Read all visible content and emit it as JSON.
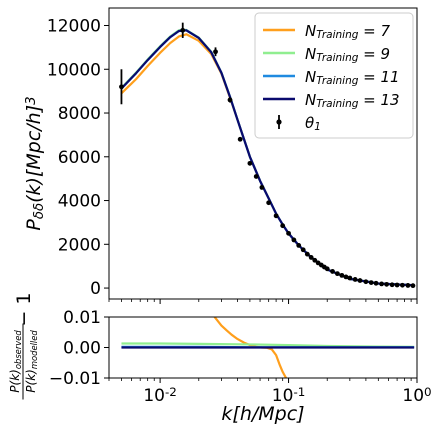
{
  "chart_data": [
    {
      "type": "line",
      "panel": "top",
      "ylabel": "$P_{\\delta\\delta}(k)[Mpc/h]^3$",
      "xscale": "log",
      "xlim": [
        0.004,
        1.0
      ],
      "ylim": [
        -500,
        12800
      ],
      "grid": false,
      "legend_position": "top-right",
      "yticks": [
        0,
        2000,
        4000,
        6000,
        8000,
        10000,
        12000
      ],
      "ytick_labels": [
        "0",
        "2000",
        "4000",
        "6000",
        "8000",
        "10000",
        "12000"
      ],
      "series": [
        {
          "name": "$N_{Training} = 7$",
          "color": "#ff9f1c",
          "x": [
            0.005,
            0.0065,
            0.008,
            0.01,
            0.012,
            0.014,
            0.016,
            0.02,
            0.025,
            0.03,
            0.035,
            0.04,
            0.045,
            0.05,
            0.06,
            0.07,
            0.08,
            0.09,
            0.1,
            0.12,
            0.15,
            0.2,
            0.3,
            0.5,
            0.7,
            0.95
          ],
          "y": [
            8900,
            9550,
            10150,
            10750,
            11200,
            11500,
            11600,
            11300,
            10700,
            9800,
            8700,
            7700,
            6800,
            6000,
            4900,
            4100,
            3400,
            2900,
            2500,
            1950,
            1400,
            850,
            420,
            210,
            165,
            130
          ]
        },
        {
          "name": "$N_{Training} = 9$",
          "color": "#90ee90",
          "x": [
            0.005,
            0.0065,
            0.008,
            0.01,
            0.012,
            0.014,
            0.016,
            0.02,
            0.025,
            0.03,
            0.035,
            0.04,
            0.045,
            0.05,
            0.06,
            0.07,
            0.08,
            0.09,
            0.1,
            0.12,
            0.15,
            0.2,
            0.3,
            0.5,
            0.7,
            0.95
          ],
          "y": [
            9150,
            9850,
            10450,
            11050,
            11500,
            11780,
            11800,
            11450,
            10800,
            9850,
            8750,
            7700,
            6800,
            6000,
            4900,
            4100,
            3400,
            2900,
            2500,
            1950,
            1400,
            850,
            420,
            210,
            165,
            130
          ]
        },
        {
          "name": "$N_{Training} = 11$",
          "color": "#1f8ae0",
          "x": [
            0.005,
            0.0065,
            0.008,
            0.01,
            0.012,
            0.014,
            0.016,
            0.02,
            0.025,
            0.03,
            0.035,
            0.04,
            0.045,
            0.05,
            0.06,
            0.07,
            0.08,
            0.09,
            0.1,
            0.12,
            0.15,
            0.2,
            0.3,
            0.5,
            0.7,
            0.95
          ],
          "y": [
            9120,
            9820,
            10420,
            11020,
            11470,
            11750,
            11780,
            11430,
            10780,
            9840,
            8740,
            7700,
            6800,
            6000,
            4900,
            4100,
            3400,
            2900,
            2500,
            1950,
            1400,
            850,
            420,
            210,
            165,
            130
          ]
        },
        {
          "name": "$N_{Training} = 13$",
          "color": "#0a0a6e",
          "x": [
            0.005,
            0.0065,
            0.008,
            0.01,
            0.012,
            0.014,
            0.016,
            0.02,
            0.025,
            0.03,
            0.035,
            0.04,
            0.045,
            0.05,
            0.06,
            0.07,
            0.08,
            0.09,
            0.1,
            0.12,
            0.15,
            0.2,
            0.3,
            0.5,
            0.7,
            0.95
          ],
          "y": [
            9120,
            9820,
            10420,
            11020,
            11470,
            11750,
            11780,
            11430,
            10780,
            9840,
            8740,
            7700,
            6800,
            6000,
            4900,
            4100,
            3400,
            2900,
            2500,
            1950,
            1400,
            850,
            420,
            210,
            165,
            130
          ]
        }
      ],
      "errorbar_series": {
        "name": "$\\theta_1$",
        "color": "#000000",
        "x": [
          0.005,
          0.015,
          0.027,
          0.035,
          0.042,
          0.05,
          0.056,
          0.062,
          0.07,
          0.08,
          0.09,
          0.1,
          0.11,
          0.12,
          0.13,
          0.14,
          0.15,
          0.16,
          0.17,
          0.18,
          0.19,
          0.2,
          0.22,
          0.24,
          0.26,
          0.28,
          0.3,
          0.33,
          0.36,
          0.4,
          0.44,
          0.48,
          0.53,
          0.58,
          0.64,
          0.7,
          0.77,
          0.85,
          0.93
        ],
        "y": [
          9200,
          11780,
          10800,
          8600,
          6800,
          5700,
          5100,
          4600,
          3900,
          3300,
          2850,
          2500,
          2200,
          1950,
          1750,
          1550,
          1400,
          1270,
          1150,
          1050,
          960,
          880,
          760,
          660,
          580,
          510,
          460,
          395,
          345,
          290,
          250,
          220,
          190,
          170,
          150,
          140,
          130,
          120,
          110
        ],
        "yerr": [
          800,
          350,
          200,
          120,
          90,
          70,
          60,
          50,
          40,
          35,
          30,
          25,
          20,
          18,
          16,
          14,
          12,
          11,
          10,
          9,
          8,
          8,
          7,
          6,
          5,
          5,
          4,
          4,
          3,
          3,
          3,
          2,
          2,
          2,
          2,
          2,
          2,
          2,
          2
        ]
      }
    },
    {
      "type": "line",
      "panel": "bottom",
      "xlabel": "$k[h/Mpc]$",
      "ylabel": "$\\frac{P(k)_{observed}}{P(k)_{modelled}} - 1$",
      "xscale": "log",
      "xlim": [
        0.004,
        1.0
      ],
      "ylim": [
        -0.01,
        0.01
      ],
      "grid": false,
      "yticks": [
        -0.01,
        0.0,
        0.01
      ],
      "ytick_labels": [
        "−0.01",
        "0.00",
        "0.01"
      ],
      "xticks": [
        0.01,
        0.1,
        1.0
      ],
      "xtick_labels": [
        "$10^{-2}$",
        "$10^{-1}$",
        "$10^{0}$"
      ],
      "series": [
        {
          "name": "$N_{Training} = 7$",
          "color": "#ff9f1c",
          "x": [
            0.026,
            0.028,
            0.03,
            0.033,
            0.036,
            0.04,
            0.045,
            0.05,
            0.056,
            0.062,
            0.068,
            0.074,
            0.08,
            0.085,
            0.09,
            0.1
          ],
          "y": [
            0.0105,
            0.0088,
            0.0072,
            0.0056,
            0.0042,
            0.0028,
            0.0016,
            0.0008,
            0.0002,
            0.0,
            -0.0001,
            -0.0006,
            -0.0025,
            -0.0055,
            -0.008,
            -0.0115
          ]
        },
        {
          "name": "$N_{Training} = 9$",
          "color": "#90ee90",
          "x": [
            0.005,
            0.01,
            0.02,
            0.05,
            0.1,
            0.2,
            0.5,
            0.95
          ],
          "y": [
            0.0013,
            0.0013,
            0.0012,
            0.001,
            0.0008,
            0.0005,
            0.0003,
            0.0002
          ]
        },
        {
          "name": "$N_{Training} = 11$",
          "color": "#1f8ae0",
          "x": [
            0.005,
            0.01,
            0.02,
            0.05,
            0.1,
            0.2,
            0.5,
            0.95
          ],
          "y": [
            0.0002,
            0.0002,
            0.0002,
            0.0001,
            0.0001,
            0.0001,
            0.0001,
            0.0001
          ]
        },
        {
          "name": "$N_{Training} = 13$",
          "color": "#0a0a6e",
          "x": [
            0.005,
            0.01,
            0.02,
            0.05,
            0.1,
            0.2,
            0.5,
            0.95
          ],
          "y": [
            0.0,
            0.0,
            0.0,
            0.0,
            0.0,
            0.0,
            0.0,
            0.0
          ]
        }
      ]
    }
  ]
}
